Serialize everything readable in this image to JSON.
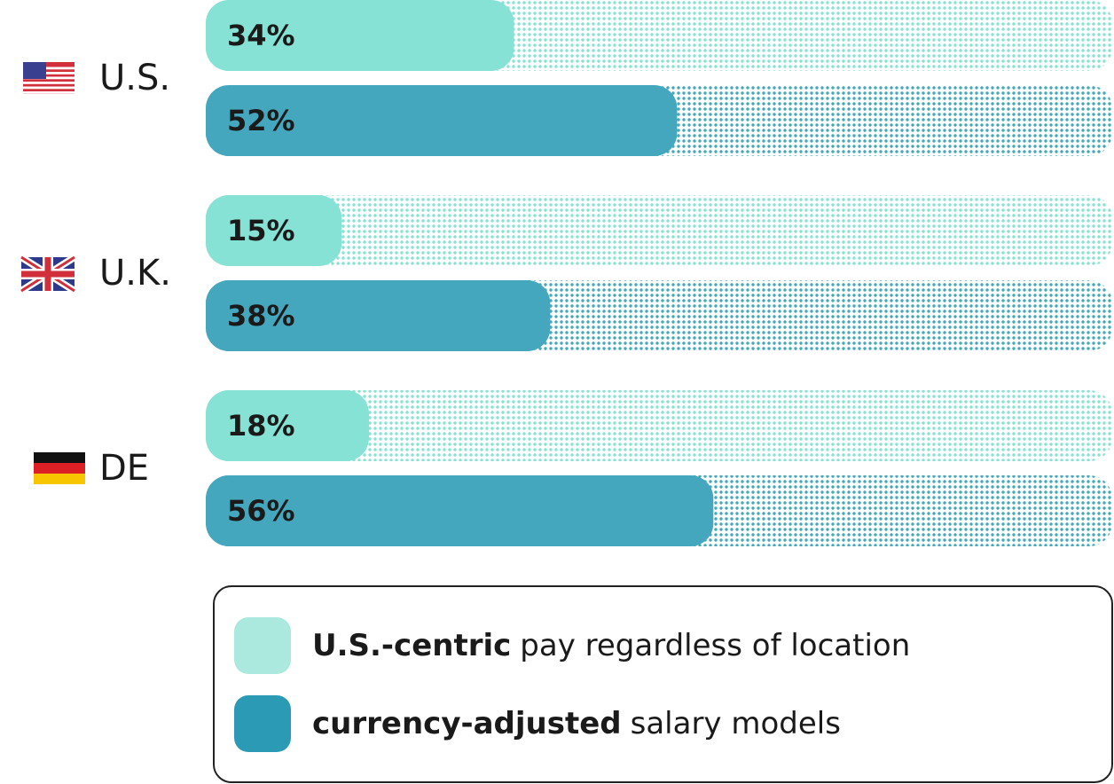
{
  "chart_data": {
    "type": "bar",
    "orientation": "horizontal",
    "categories": [
      "U.S.",
      "U.K.",
      "DE"
    ],
    "series": [
      {
        "label_bold": "U.S.-centric",
        "label": "pay regardless of location",
        "color": "#86e2d4",
        "legend_color": "#abe9df",
        "values": [
          34,
          15,
          18
        ],
        "value_labels": [
          "34%",
          "15%",
          "18%"
        ]
      },
      {
        "label_bold": "currency-adjusted",
        "label": "salary models",
        "color": "#44a7bd",
        "legend_color": "#2b9ab5",
        "values": [
          52,
          38,
          56
        ],
        "value_labels": [
          "52%",
          "38%",
          "56%"
        ]
      }
    ],
    "xlim": [
      0,
      100
    ]
  }
}
